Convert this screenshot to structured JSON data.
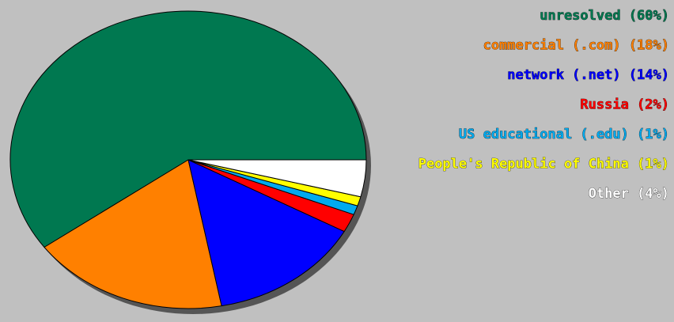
{
  "chart_data": {
    "type": "pie",
    "legend_position": "top-right",
    "slices": [
      {
        "label": "unresolved (60%)",
        "value": 60,
        "color": "#007850"
      },
      {
        "label": "commercial (.com) (18%)",
        "value": 18,
        "color": "#ff8000"
      },
      {
        "label": "network (.net) (14%)",
        "value": 14,
        "color": "#0000ff"
      },
      {
        "label": "Russia (2%)",
        "value": 2,
        "color": "#ff0000"
      },
      {
        "label": "US educational (.edu) (1%)",
        "value": 1,
        "color": "#00aaee"
      },
      {
        "label": "People's Republic of China (1%)",
        "value": 1,
        "color": "#ffff00"
      },
      {
        "label": "Other (4%)",
        "value": 4,
        "color": "#ffffff"
      }
    ]
  }
}
